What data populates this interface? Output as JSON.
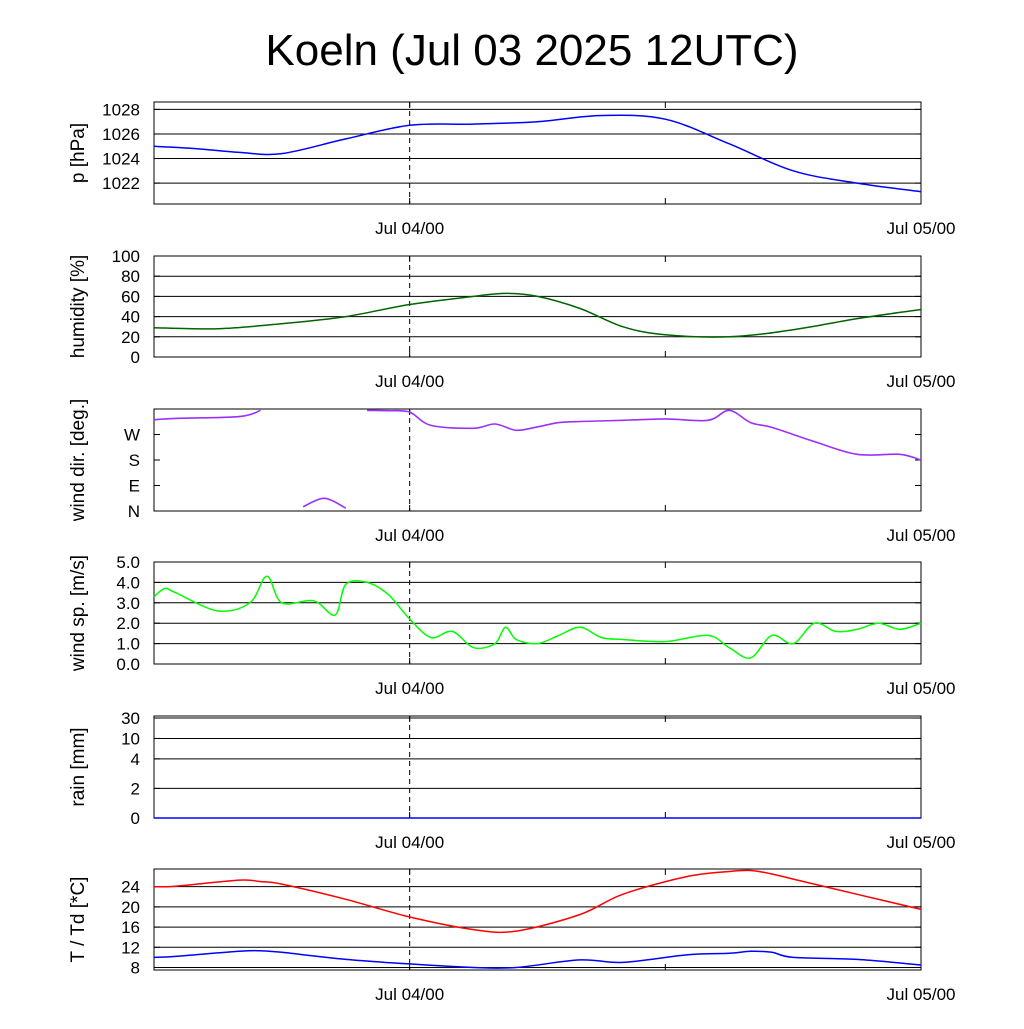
{
  "title": "Koeln (Jul 03 2025 12UTC)",
  "colors": {
    "pressure": "#0000ff",
    "humidity": "#006400",
    "wind_dir": "#9b30ff",
    "wind_speed": "#00ff00",
    "temperature": "#ff0000",
    "dewpoint": "#0000ff",
    "grid": "#000000"
  },
  "chart_data": [
    {
      "type": "line",
      "ylabel": "p [hPa]",
      "x_tick_labels": [
        "Jul 04/00",
        "Jul 05/00"
      ],
      "x": [
        0,
        2,
        4,
        6,
        9,
        12,
        15,
        18,
        21,
        24,
        27,
        30,
        33,
        36
      ],
      "ylim": [
        1020.3,
        1028.6
      ],
      "yticks": [
        1022,
        1024,
        1026,
        1028
      ],
      "grid": true,
      "series": [
        {
          "values": [
            1025.0,
            1024.8,
            1024.5,
            1024.4,
            1025.6,
            1026.7,
            1026.8,
            1027.0,
            1027.5,
            1027.2,
            1025.2,
            1023.0,
            1022.0,
            1021.3
          ]
        }
      ]
    },
    {
      "type": "line",
      "ylabel": "humidity [%]",
      "x_tick_labels": [
        "Jul 04/00",
        "Jul 05/00"
      ],
      "x": [
        0,
        3,
        6,
        9,
        12,
        15,
        16.5,
        18,
        20,
        22,
        24,
        27,
        30,
        33,
        36
      ],
      "ylim": [
        0,
        100
      ],
      "yticks": [
        0,
        20,
        40,
        60,
        80,
        100
      ],
      "grid": true,
      "series": [
        {
          "values": [
            29,
            28,
            33,
            40,
            52,
            60,
            63,
            60,
            48,
            30,
            22,
            20,
            27,
            38,
            47
          ]
        }
      ]
    },
    {
      "type": "line",
      "ylabel": "wind dir. [deg.]",
      "x_tick_labels": [
        "Jul 04/00",
        "Jul 05/00"
      ],
      "x": [
        0,
        1,
        4,
        5,
        7,
        8,
        9,
        10,
        11,
        12,
        13,
        15,
        16,
        17,
        18,
        19,
        20,
        22,
        24,
        26,
        27,
        28,
        29,
        31,
        33,
        35,
        36
      ],
      "ylim": [
        0,
        360
      ],
      "yticks": [
        "N",
        "E",
        "S",
        "W"
      ],
      "series": [
        {
          "values": [
            322,
            327,
            333,
            355,
            15,
            45,
            10,
            355,
            354,
            349,
            302,
            292,
            307,
            285,
            297,
            312,
            316,
            320,
            325,
            320,
            355,
            312,
            295,
            245,
            200,
            200,
            180
          ]
        }
      ]
    },
    {
      "type": "line",
      "ylabel": "wind sp. [m/s]",
      "x_tick_labels": [
        "Jul 04/00",
        "Jul 05/00"
      ],
      "x": [
        0,
        0.5,
        1,
        3,
        4.5,
        5.3,
        6,
        7.5,
        8.5,
        9,
        10,
        11,
        12,
        13,
        14,
        15,
        16,
        16.5,
        17,
        18,
        19,
        20,
        21,
        22,
        24,
        26,
        27,
        28,
        29,
        30,
        31,
        32,
        33,
        34,
        35,
        36
      ],
      "ylim": [
        0,
        5.0
      ],
      "yticks": [
        0.0,
        1.0,
        2.0,
        3.0,
        4.0,
        5.0
      ],
      "grid": true,
      "series": [
        {
          "values": [
            3.3,
            3.7,
            3.5,
            2.6,
            3.0,
            4.3,
            3.0,
            3.1,
            2.4,
            3.9,
            4.0,
            3.4,
            2.2,
            1.3,
            1.6,
            0.8,
            1.0,
            1.8,
            1.2,
            1.0,
            1.4,
            1.8,
            1.3,
            1.2,
            1.1,
            1.4,
            0.8,
            0.3,
            1.4,
            1.0,
            2.0,
            1.6,
            1.7,
            2.0,
            1.7,
            2.0
          ]
        }
      ]
    },
    {
      "type": "line",
      "ylabel": "rain [mm]",
      "x_tick_labels": [
        "Jul 04/00",
        "Jul 05/00"
      ],
      "x": [
        0,
        36
      ],
      "ylim": [
        0,
        30
      ],
      "yticks": [
        0,
        2,
        4,
        10,
        30
      ],
      "grid": true,
      "series": [
        {
          "values": [
            0,
            0
          ]
        }
      ]
    },
    {
      "type": "line",
      "ylabel": "T / Td [*C]",
      "x_tick_labels": [
        "Jul 04/00",
        "Jul 05/00"
      ],
      "x": [
        0,
        1,
        4,
        5,
        6,
        9,
        12,
        15,
        17,
        20,
        22,
        25,
        27,
        28,
        29,
        30,
        33,
        36
      ],
      "ylim": [
        7.5,
        27.5
      ],
      "yticks": [
        8,
        12,
        16,
        20,
        24
      ],
      "grid": true,
      "series": [
        {
          "values": [
            24.0,
            24.1,
            25.3,
            25.0,
            24.5,
            21.5,
            18.0,
            15.5,
            15.2,
            18.5,
            22.5,
            26.0,
            27.0,
            27.2,
            26.5,
            25.5,
            22.5,
            19.5
          ]
        },
        {
          "values": [
            10.0,
            10.2,
            11.2,
            11.3,
            11.0,
            9.6,
            8.7,
            8.0,
            8.0,
            9.5,
            9.0,
            10.5,
            10.8,
            11.2,
            11.0,
            10.0,
            9.6,
            8.5
          ]
        }
      ]
    }
  ]
}
